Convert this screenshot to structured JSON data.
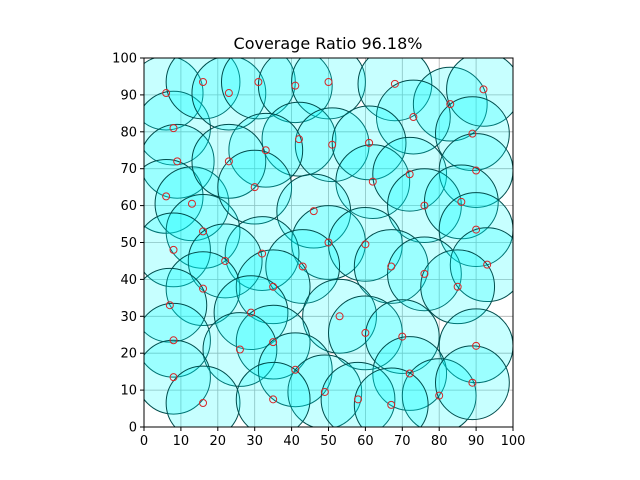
{
  "chart_data": {
    "type": "scatter",
    "title": "Coverage Ratio 96.18%",
    "xlabel": "",
    "ylabel": "",
    "xlim": [
      0,
      100
    ],
    "ylim": [
      0,
      100
    ],
    "xticks": [
      0,
      10,
      20,
      30,
      40,
      50,
      60,
      70,
      80,
      90,
      100
    ],
    "yticks": [
      0,
      10,
      20,
      30,
      40,
      50,
      60,
      70,
      80,
      90,
      100
    ],
    "grid": true,
    "coverage_radius": 10,
    "circle_fill": "#00ffff",
    "circle_edge": "#004d4d",
    "marker_color": "#d62728",
    "points": [
      {
        "x": 6,
        "y": 90.5
      },
      {
        "x": 8,
        "y": 81
      },
      {
        "x": 9,
        "y": 72
      },
      {
        "x": 6,
        "y": 62.5
      },
      {
        "x": 13,
        "y": 60.5
      },
      {
        "x": 16,
        "y": 53
      },
      {
        "x": 8,
        "y": 48
      },
      {
        "x": 16,
        "y": 93.5
      },
      {
        "x": 23,
        "y": 90.5
      },
      {
        "x": 31,
        "y": 93.5
      },
      {
        "x": 41,
        "y": 92.5
      },
      {
        "x": 50,
        "y": 93.5
      },
      {
        "x": 68,
        "y": 93
      },
      {
        "x": 83,
        "y": 87.5
      },
      {
        "x": 92,
        "y": 91.5
      },
      {
        "x": 73,
        "y": 84
      },
      {
        "x": 89,
        "y": 79.5
      },
      {
        "x": 42,
        "y": 78
      },
      {
        "x": 51,
        "y": 76.5
      },
      {
        "x": 61,
        "y": 77
      },
      {
        "x": 33,
        "y": 75
      },
      {
        "x": 23,
        "y": 72
      },
      {
        "x": 30,
        "y": 65
      },
      {
        "x": 62,
        "y": 66.5
      },
      {
        "x": 72,
        "y": 68.5
      },
      {
        "x": 90,
        "y": 69.5
      },
      {
        "x": 76,
        "y": 60
      },
      {
        "x": 86,
        "y": 61
      },
      {
        "x": 46,
        "y": 58.5
      },
      {
        "x": 90,
        "y": 53.5
      },
      {
        "x": 50,
        "y": 50
      },
      {
        "x": 60,
        "y": 49.5
      },
      {
        "x": 32,
        "y": 47
      },
      {
        "x": 22,
        "y": 45
      },
      {
        "x": 43,
        "y": 43.5
      },
      {
        "x": 67,
        "y": 43.5
      },
      {
        "x": 76,
        "y": 41.5
      },
      {
        "x": 93,
        "y": 44
      },
      {
        "x": 16,
        "y": 37.5
      },
      {
        "x": 35,
        "y": 38
      },
      {
        "x": 85,
        "y": 38
      },
      {
        "x": 7,
        "y": 33
      },
      {
        "x": 29,
        "y": 31
      },
      {
        "x": 53,
        "y": 30
      },
      {
        "x": 60,
        "y": 25.5
      },
      {
        "x": 8,
        "y": 23.5
      },
      {
        "x": 35,
        "y": 23
      },
      {
        "x": 70,
        "y": 24.5
      },
      {
        "x": 26,
        "y": 21
      },
      {
        "x": 90,
        "y": 22
      },
      {
        "x": 41,
        "y": 15.5
      },
      {
        "x": 72,
        "y": 14.5
      },
      {
        "x": 8,
        "y": 13.5
      },
      {
        "x": 49,
        "y": 9.5
      },
      {
        "x": 58,
        "y": 7.5
      },
      {
        "x": 80,
        "y": 8.5
      },
      {
        "x": 89,
        "y": 12
      },
      {
        "x": 16,
        "y": 6.5
      },
      {
        "x": 35,
        "y": 7.5
      },
      {
        "x": 67,
        "y": 6
      }
    ]
  }
}
